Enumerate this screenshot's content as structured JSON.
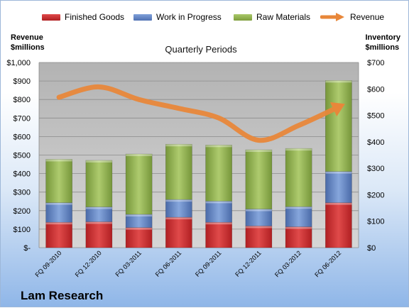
{
  "title": "Quarterly Periods",
  "company": "Lam Research",
  "left_axis": {
    "label_line1": "Revenue",
    "label_line2": "$millions"
  },
  "right_axis": {
    "label_line1": "Inventory",
    "label_line2": "$millions"
  },
  "legend": [
    {
      "label": "Finished Goods",
      "kind": "bar",
      "color": "#c0282c"
    },
    {
      "label": "Work in Progress",
      "kind": "bar",
      "color": "#5b7fc0"
    },
    {
      "label": "Raw Materials",
      "kind": "bar",
      "color": "#8fb04a"
    },
    {
      "label": "Revenue",
      "kind": "line",
      "color": "#e8873a"
    }
  ],
  "chart_data": {
    "type": "bar",
    "stacked": true,
    "categories": [
      "FQ 09-2010",
      "FQ 12-2010",
      "FQ 03-2011",
      "FQ 06-2011",
      "FQ 09-2011",
      "FQ 12-2011",
      "FQ 03-2012",
      "FQ 06-2012"
    ],
    "series": [
      {
        "name": "Finished Goods",
        "axis": "right",
        "color": "#c0282c",
        "values": [
          96,
          98,
          76,
          115,
          96,
          82,
          79,
          170
        ]
      },
      {
        "name": "Work in Progress",
        "axis": "right",
        "color": "#5b7fc0",
        "values": [
          74,
          56,
          50,
          67,
          80,
          64,
          76,
          118
        ]
      },
      {
        "name": "Raw Materials",
        "axis": "right",
        "color": "#8fb04a",
        "values": [
          164,
          176,
          228,
          209,
          212,
          224,
          220,
          344
        ]
      },
      {
        "name": "Revenue",
        "axis": "left",
        "type": "line",
        "color": "#e8873a",
        "values": [
          812,
          868,
          800,
          752,
          700,
          580,
          660,
          760
        ]
      }
    ],
    "left_ylim": [
      0,
      1000
    ],
    "left_ticks": [
      "$-",
      "$100",
      "$200",
      "$300",
      "$400",
      "$500",
      "$600",
      "$700",
      "$800",
      "$900",
      "$1,000"
    ],
    "right_ylim": [
      0,
      700
    ],
    "right_ticks": [
      "$0",
      "$100",
      "$200",
      "$300",
      "$400",
      "$500",
      "$600",
      "$700"
    ],
    "grid": true
  }
}
